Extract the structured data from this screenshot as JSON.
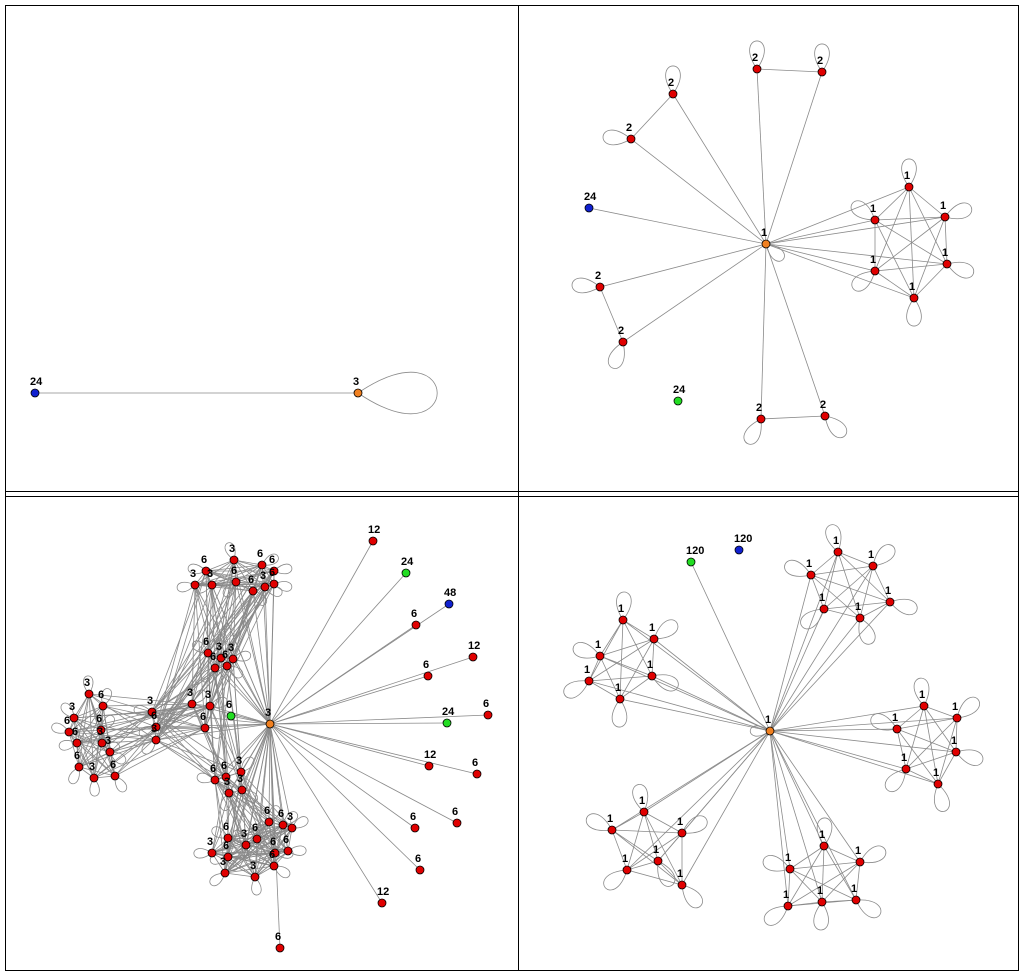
{
  "colors": {
    "red": "#e00000",
    "orange": "#f08020",
    "blue": "#1020d0",
    "green": "#22dd22",
    "edge": "#8a8a8a",
    "frame": "#000000"
  },
  "panels": [
    {
      "id": "top-left",
      "nodes": [
        {
          "label": "24",
          "color": "blue"
        },
        {
          "label": "3",
          "color": "orange"
        }
      ]
    },
    {
      "id": "top-right",
      "nodes": [
        {
          "label": "1",
          "color": "orange"
        },
        {
          "label": "2",
          "color": "red"
        },
        {
          "label": "2",
          "color": "red"
        },
        {
          "label": "2",
          "color": "red"
        },
        {
          "label": "2",
          "color": "red"
        },
        {
          "label": "24",
          "color": "blue"
        },
        {
          "label": "2",
          "color": "red"
        },
        {
          "label": "2",
          "color": "red"
        },
        {
          "label": "24",
          "color": "green"
        },
        {
          "label": "2",
          "color": "red"
        },
        {
          "label": "2",
          "color": "red"
        },
        {
          "label": "1",
          "color": "red"
        },
        {
          "label": "1",
          "color": "red"
        },
        {
          "label": "1",
          "color": "red"
        },
        {
          "label": "1",
          "color": "red"
        },
        {
          "label": "1",
          "color": "red"
        },
        {
          "label": "1",
          "color": "red"
        }
      ]
    },
    {
      "id": "bottom-left",
      "nodes": [
        {
          "label": "3",
          "color": "orange"
        },
        {
          "label": "12",
          "color": "red"
        },
        {
          "label": "24",
          "color": "green"
        },
        {
          "label": "48",
          "color": "blue"
        },
        {
          "label": "6",
          "color": "red"
        },
        {
          "label": "12",
          "color": "red"
        },
        {
          "label": "6",
          "color": "red"
        },
        {
          "label": "6",
          "color": "red"
        },
        {
          "label": "24",
          "color": "green"
        },
        {
          "label": "12",
          "color": "red"
        },
        {
          "label": "6",
          "color": "red"
        },
        {
          "label": "6",
          "color": "red"
        },
        {
          "label": "6",
          "color": "red"
        },
        {
          "label": "6",
          "color": "red"
        },
        {
          "label": "12",
          "color": "red"
        },
        {
          "label": "6",
          "color": "red"
        },
        {
          "label": "6",
          "color": "green"
        },
        {
          "label": "3",
          "color": "red"
        },
        {
          "label": "6",
          "color": "red"
        },
        {
          "label": "3",
          "color": "red"
        },
        {
          "label": "6",
          "color": "red"
        },
        {
          "label": "6",
          "color": "red"
        },
        {
          "label": "6",
          "color": "red"
        },
        {
          "label": "3",
          "color": "red"
        },
        {
          "label": "3",
          "color": "red"
        },
        {
          "label": "6",
          "color": "red"
        },
        {
          "label": "6",
          "color": "red"
        },
        {
          "label": "3",
          "color": "red"
        },
        {
          "label": "3",
          "color": "red"
        },
        {
          "label": "6",
          "color": "red"
        },
        {
          "label": "3",
          "color": "red"
        },
        {
          "label": "3",
          "color": "red"
        },
        {
          "label": "3",
          "color": "red"
        },
        {
          "label": "6",
          "color": "red"
        },
        {
          "label": "6",
          "color": "red"
        },
        {
          "label": "3",
          "color": "red"
        },
        {
          "label": "6",
          "color": "red"
        },
        {
          "label": "3",
          "color": "red"
        },
        {
          "label": "6",
          "color": "red"
        },
        {
          "label": "3",
          "color": "red"
        },
        {
          "label": "6",
          "color": "red"
        },
        {
          "label": "3",
          "color": "red"
        },
        {
          "label": "6",
          "color": "red"
        },
        {
          "label": "6",
          "color": "red"
        },
        {
          "label": "6",
          "color": "red"
        },
        {
          "label": "3",
          "color": "red"
        },
        {
          "label": "3",
          "color": "red"
        },
        {
          "label": "6",
          "color": "red"
        },
        {
          "label": "6",
          "color": "red"
        },
        {
          "label": "6",
          "color": "red"
        },
        {
          "label": "6",
          "color": "red"
        },
        {
          "label": "3",
          "color": "red"
        },
        {
          "label": "3",
          "color": "red"
        },
        {
          "label": "3",
          "color": "red"
        },
        {
          "label": "6",
          "color": "red"
        },
        {
          "label": "6",
          "color": "red"
        },
        {
          "label": "3",
          "color": "red"
        },
        {
          "label": "6",
          "color": "red"
        },
        {
          "label": "3",
          "color": "red"
        },
        {
          "label": "3",
          "color": "red"
        },
        {
          "label": "6",
          "color": "red"
        },
        {
          "label": "6",
          "color": "red"
        },
        {
          "label": "6",
          "color": "red"
        },
        {
          "label": "6",
          "color": "red"
        },
        {
          "label": "3",
          "color": "red"
        },
        {
          "label": "3",
          "color": "red"
        },
        {
          "label": "6",
          "color": "red"
        }
      ]
    },
    {
      "id": "bottom-right",
      "nodes": [
        {
          "label": "1",
          "color": "orange"
        },
        {
          "label": "120",
          "color": "green"
        },
        {
          "label": "120",
          "color": "blue"
        },
        {
          "label": "1",
          "color": "red"
        },
        {
          "label": "1",
          "color": "red"
        },
        {
          "label": "1",
          "color": "red"
        },
        {
          "label": "1",
          "color": "red"
        },
        {
          "label": "1",
          "color": "red"
        },
        {
          "label": "1",
          "color": "red"
        },
        {
          "label": "1",
          "color": "red"
        },
        {
          "label": "1",
          "color": "red"
        },
        {
          "label": "1",
          "color": "red"
        },
        {
          "label": "1",
          "color": "red"
        },
        {
          "label": "1",
          "color": "red"
        },
        {
          "label": "1",
          "color": "red"
        },
        {
          "label": "1",
          "color": "red"
        },
        {
          "label": "1",
          "color": "red"
        },
        {
          "label": "1",
          "color": "red"
        },
        {
          "label": "1",
          "color": "red"
        },
        {
          "label": "1",
          "color": "red"
        },
        {
          "label": "1",
          "color": "red"
        },
        {
          "label": "1",
          "color": "red"
        },
        {
          "label": "1",
          "color": "red"
        },
        {
          "label": "1",
          "color": "red"
        },
        {
          "label": "1",
          "color": "red"
        },
        {
          "label": "1",
          "color": "red"
        },
        {
          "label": "1",
          "color": "red"
        },
        {
          "label": "1",
          "color": "red"
        },
        {
          "label": "1",
          "color": "red"
        },
        {
          "label": "1",
          "color": "red"
        },
        {
          "label": "1",
          "color": "red"
        },
        {
          "label": "1",
          "color": "red"
        },
        {
          "label": "1",
          "color": "red"
        }
      ]
    }
  ]
}
